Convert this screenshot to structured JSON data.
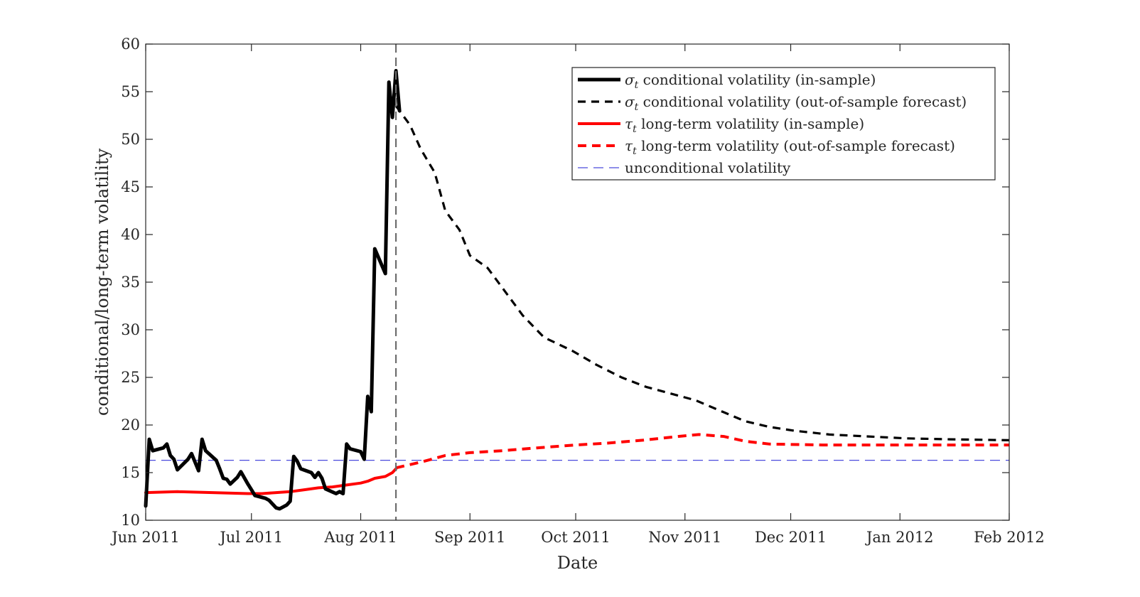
{
  "chart_data": {
    "type": "line",
    "xlabel": "Date",
    "ylabel": "conditional/long-term volatility",
    "xlim": [
      "2011-06-01",
      "2012-02-01"
    ],
    "ylim": [
      10,
      60
    ],
    "x_ticks": [
      {
        "date": "2011-06-01",
        "label": "Jun 2011"
      },
      {
        "date": "2011-07-01",
        "label": "Jul 2011"
      },
      {
        "date": "2011-08-01",
        "label": "Aug 2011"
      },
      {
        "date": "2011-09-01",
        "label": "Sep 2011"
      },
      {
        "date": "2011-10-01",
        "label": "Oct 2011"
      },
      {
        "date": "2011-11-01",
        "label": "Nov 2011"
      },
      {
        "date": "2011-12-01",
        "label": "Dec 2011"
      },
      {
        "date": "2012-01-01",
        "label": "Jan 2012"
      },
      {
        "date": "2012-02-01",
        "label": "Feb 2012"
      }
    ],
    "y_ticks": [
      10,
      15,
      20,
      25,
      30,
      35,
      40,
      45,
      50,
      55,
      60
    ],
    "grid": false,
    "legend_position": "top-right",
    "forecast_origin": "2011-08-11",
    "series": [
      {
        "name": "σt conditional volatility (in-sample)",
        "legend_symbol": "σ",
        "legend_subscript": "t",
        "legend_text": " conditional volatility (in-sample)",
        "color": "#000000",
        "style": "solid",
        "points": [
          [
            "2011-06-01",
            11.5
          ],
          [
            "2011-06-02",
            18.5
          ],
          [
            "2011-06-03",
            17.3
          ],
          [
            "2011-06-06",
            17.6
          ],
          [
            "2011-06-07",
            18.0
          ],
          [
            "2011-06-08",
            16.8
          ],
          [
            "2011-06-09",
            16.4
          ],
          [
            "2011-06-10",
            15.3
          ],
          [
            "2011-06-13",
            16.4
          ],
          [
            "2011-06-14",
            17.0
          ],
          [
            "2011-06-16",
            15.2
          ],
          [
            "2011-06-17",
            18.5
          ],
          [
            "2011-06-18",
            17.3
          ],
          [
            "2011-06-21",
            16.3
          ],
          [
            "2011-06-22",
            15.4
          ],
          [
            "2011-06-23",
            14.4
          ],
          [
            "2011-06-24",
            14.3
          ],
          [
            "2011-06-25",
            13.8
          ],
          [
            "2011-06-27",
            14.5
          ],
          [
            "2011-06-28",
            15.1
          ],
          [
            "2011-06-30",
            13.8
          ],
          [
            "2011-07-01",
            13.2
          ],
          [
            "2011-07-02",
            12.6
          ],
          [
            "2011-07-05",
            12.3
          ],
          [
            "2011-07-06",
            12.1
          ],
          [
            "2011-07-07",
            11.7
          ],
          [
            "2011-07-08",
            11.3
          ],
          [
            "2011-07-09",
            11.2
          ],
          [
            "2011-07-11",
            11.6
          ],
          [
            "2011-07-12",
            12.0
          ],
          [
            "2011-07-13",
            16.7
          ],
          [
            "2011-07-14",
            16.2
          ],
          [
            "2011-07-15",
            15.4
          ],
          [
            "2011-07-18",
            15.0
          ],
          [
            "2011-07-19",
            14.5
          ],
          [
            "2011-07-20",
            15.0
          ],
          [
            "2011-07-21",
            14.4
          ],
          [
            "2011-07-22",
            13.3
          ],
          [
            "2011-07-25",
            12.8
          ],
          [
            "2011-07-26",
            13.0
          ],
          [
            "2011-07-27",
            12.8
          ],
          [
            "2011-07-28",
            18.0
          ],
          [
            "2011-07-29",
            17.5
          ],
          [
            "2011-08-01",
            17.2
          ],
          [
            "2011-08-02",
            16.4
          ],
          [
            "2011-08-03",
            23.0
          ],
          [
            "2011-08-04",
            21.4
          ],
          [
            "2011-08-05",
            38.5
          ],
          [
            "2011-08-08",
            35.9
          ],
          [
            "2011-08-09",
            56.0
          ],
          [
            "2011-08-10",
            52.3
          ],
          [
            "2011-08-11",
            57.2
          ],
          [
            "2011-08-12",
            53.0
          ]
        ]
      },
      {
        "name": "σt conditional volatility (out-of-sample forecast)",
        "legend_symbol": "σ",
        "legend_subscript": "t",
        "legend_text": " conditional volatility (out-of-sample forecast)",
        "color": "#000000",
        "style": "dashed",
        "points": [
          [
            "2011-08-11",
            53.5
          ],
          [
            "2011-08-15",
            51.5
          ],
          [
            "2011-08-18",
            49.0
          ],
          [
            "2011-08-22",
            46.5
          ],
          [
            "2011-08-25",
            42.5
          ],
          [
            "2011-08-29",
            40.5
          ],
          [
            "2011-09-01",
            37.8
          ],
          [
            "2011-09-06",
            36.5
          ],
          [
            "2011-09-12",
            33.5
          ],
          [
            "2011-09-16",
            31.5
          ],
          [
            "2011-09-22",
            29.2
          ],
          [
            "2011-09-30",
            27.8
          ],
          [
            "2011-10-07",
            26.3
          ],
          [
            "2011-10-14",
            25.0
          ],
          [
            "2011-10-21",
            24.0
          ],
          [
            "2011-10-28",
            23.3
          ],
          [
            "2011-11-04",
            22.6
          ],
          [
            "2011-11-11",
            21.5
          ],
          [
            "2011-11-18",
            20.4
          ],
          [
            "2011-11-25",
            19.8
          ],
          [
            "2011-12-02",
            19.4
          ],
          [
            "2011-12-12",
            19.0
          ],
          [
            "2011-12-23",
            18.8
          ],
          [
            "2012-01-03",
            18.6
          ],
          [
            "2012-01-15",
            18.5
          ],
          [
            "2012-02-01",
            18.4
          ]
        ]
      },
      {
        "name": "τt long-term volatility (in-sample)",
        "legend_symbol": "τ",
        "legend_subscript": "t",
        "legend_text": " long-term volatility (in-sample)",
        "color": "#ff0000",
        "style": "solid",
        "points": [
          [
            "2011-06-01",
            12.9
          ],
          [
            "2011-06-10",
            13.0
          ],
          [
            "2011-06-20",
            12.9
          ],
          [
            "2011-06-30",
            12.8
          ],
          [
            "2011-07-04",
            12.8
          ],
          [
            "2011-07-08",
            12.9
          ],
          [
            "2011-07-12",
            13.0
          ],
          [
            "2011-07-16",
            13.2
          ],
          [
            "2011-07-20",
            13.4
          ],
          [
            "2011-07-24",
            13.5
          ],
          [
            "2011-07-28",
            13.7
          ],
          [
            "2011-08-01",
            13.9
          ],
          [
            "2011-08-03",
            14.1
          ],
          [
            "2011-08-05",
            14.4
          ],
          [
            "2011-08-08",
            14.6
          ],
          [
            "2011-08-10",
            15.0
          ],
          [
            "2011-08-11",
            15.4
          ]
        ]
      },
      {
        "name": "τt long-term volatility (out-of-sample forecast)",
        "legend_symbol": "τ",
        "legend_subscript": "t",
        "legend_text": " long-term volatility (out-of-sample forecast)",
        "color": "#ff0000",
        "style": "dashed",
        "points": [
          [
            "2011-08-11",
            15.5
          ],
          [
            "2011-08-18",
            16.1
          ],
          [
            "2011-08-25",
            16.8
          ],
          [
            "2011-09-01",
            17.1
          ],
          [
            "2011-09-10",
            17.3
          ],
          [
            "2011-09-20",
            17.6
          ],
          [
            "2011-10-01",
            17.9
          ],
          [
            "2011-10-10",
            18.1
          ],
          [
            "2011-10-20",
            18.4
          ],
          [
            "2011-10-30",
            18.8
          ],
          [
            "2011-11-05",
            19.0
          ],
          [
            "2011-11-12",
            18.8
          ],
          [
            "2011-11-18",
            18.3
          ],
          [
            "2011-11-25",
            18.0
          ],
          [
            "2011-12-10",
            17.9
          ],
          [
            "2012-01-01",
            17.9
          ],
          [
            "2012-02-01",
            17.9
          ]
        ]
      },
      {
        "name": "unconditional volatility",
        "legend_symbol": "",
        "legend_subscript": "",
        "legend_text": "unconditional volatility",
        "color": "#4b4bdc",
        "style": "thin-dashed",
        "points": [
          [
            "2011-06-01",
            16.3
          ],
          [
            "2012-02-01",
            16.3
          ]
        ]
      }
    ]
  }
}
